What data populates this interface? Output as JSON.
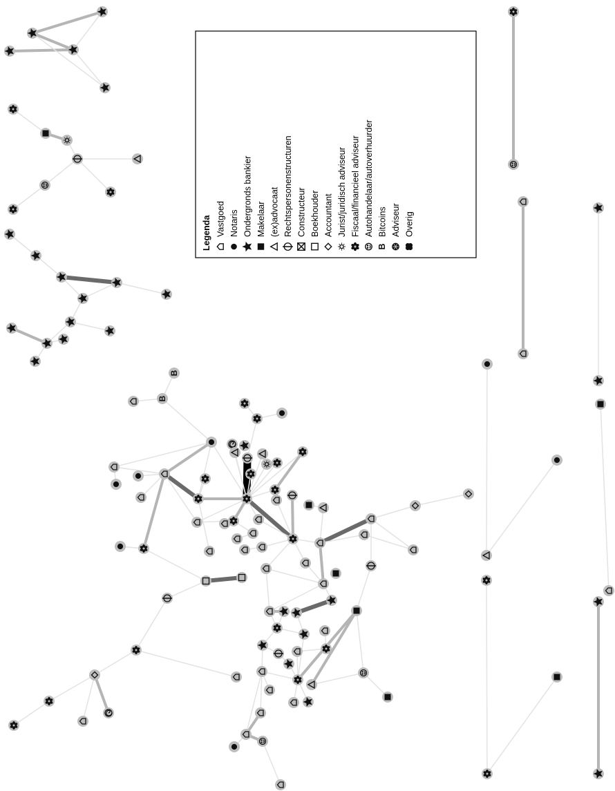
{
  "legend": {
    "title": "Legenda",
    "items": [
      {
        "label": "Vastgoed",
        "icon": "house-icon"
      },
      {
        "label": "Notaris",
        "icon": "dot-icon"
      },
      {
        "label": "Ondergronds bankier",
        "icon": "star-icon"
      },
      {
        "label": "Makelaar",
        "icon": "square-icon"
      },
      {
        "label": "(ex)advocaat",
        "icon": "triangle-icon"
      },
      {
        "label": "Rechtspersonenstructuren",
        "icon": "circle-cross-icon"
      },
      {
        "label": "Constructeur",
        "icon": "boxed-x-icon"
      },
      {
        "label": "Boekhouder",
        "icon": "open-square-icon"
      },
      {
        "label": "Accountant",
        "icon": "diamond-icon"
      },
      {
        "label": "Jurist/juridisch adviseur",
        "icon": "sun-icon"
      },
      {
        "label": "Fiscaal/financieel adviseur",
        "icon": "flower-icon"
      },
      {
        "label": "Autohandelaar/autoverhuurder",
        "icon": "smiley-icon"
      },
      {
        "label": "Bitcoins",
        "icon": "letter-b-icon"
      },
      {
        "label": "Adviseur",
        "icon": "cog-icon"
      },
      {
        "label": "Overig",
        "icon": "clover-icon"
      }
    ]
  },
  "colors": {
    "node_fill": "#bdbdbd",
    "edge_light": "#e3e3e3",
    "edge_medium": "#b5b5b5",
    "edge_dark": "#6a6a6a",
    "edge_black": "#000000",
    "symbol": "#111111"
  }
}
